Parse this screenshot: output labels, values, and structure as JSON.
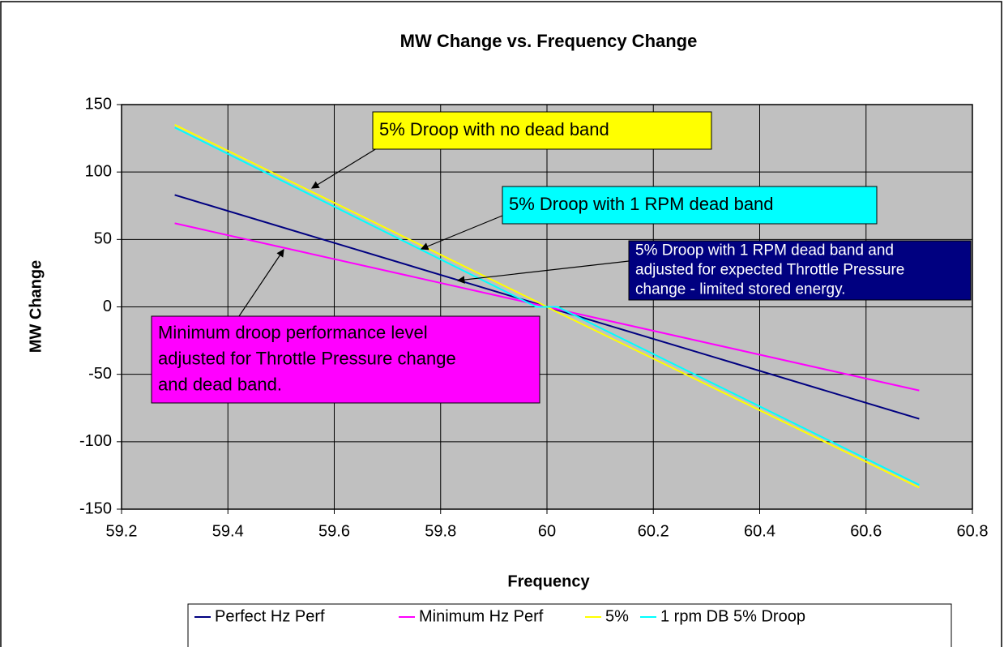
{
  "chart_data": {
    "type": "line",
    "title": "MW Change vs. Frequency Change",
    "x_label": "Frequency",
    "y_label": "MW Change",
    "x": [
      59.3,
      59.98,
      60,
      60.02,
      60.7
    ],
    "series": [
      {
        "name": "Perfect Hz Perf",
        "color": "#000080",
        "values": [
          83,
          2.4,
          0,
          -2.4,
          -83
        ]
      },
      {
        "name": "Minimum Hz Perf",
        "color": "#ff00ff",
        "values": [
          62,
          1.8,
          0,
          -1.8,
          -62
        ]
      },
      {
        "name": "5%",
        "color": "#ffff00",
        "values": [
          135,
          4,
          0,
          -4,
          -134
        ]
      },
      {
        "name": "1 rpm DB 5% Droop",
        "color": "#00ffff",
        "values": [
          133,
          0,
          0,
          0,
          -132
        ]
      }
    ],
    "xlim": [
      59.2,
      60.8
    ],
    "xticks": [
      59.2,
      59.4,
      59.6,
      59.8,
      60,
      60.2,
      60.4,
      60.6,
      60.8
    ],
    "ylim": [
      -150,
      150
    ],
    "yticks": [
      -150,
      -100,
      -50,
      0,
      50,
      100,
      150
    ],
    "grid": true,
    "background": "#c0c0c0",
    "legend": "bottom",
    "annotations": [
      {
        "lines": [
          "5% Droop with no dead band"
        ],
        "color": "#ffff00",
        "text_color": "#000000"
      },
      {
        "lines": [
          "5% Droop with 1 RPM dead band"
        ],
        "color": "#00ffff",
        "text_color": "#000000"
      },
      {
        "lines": [
          "5% Droop with 1 RPM dead band and",
          "adjusted for expected Throttle Pressure",
          "change - limited stored energy."
        ],
        "color": "#000080",
        "text_color": "#ffffff"
      },
      {
        "lines": [
          "Minimum droop performance level",
          "adjusted for Throttle Pressure change",
          "and dead band."
        ],
        "color": "#ff00ff",
        "text_color": "#000000"
      }
    ]
  }
}
